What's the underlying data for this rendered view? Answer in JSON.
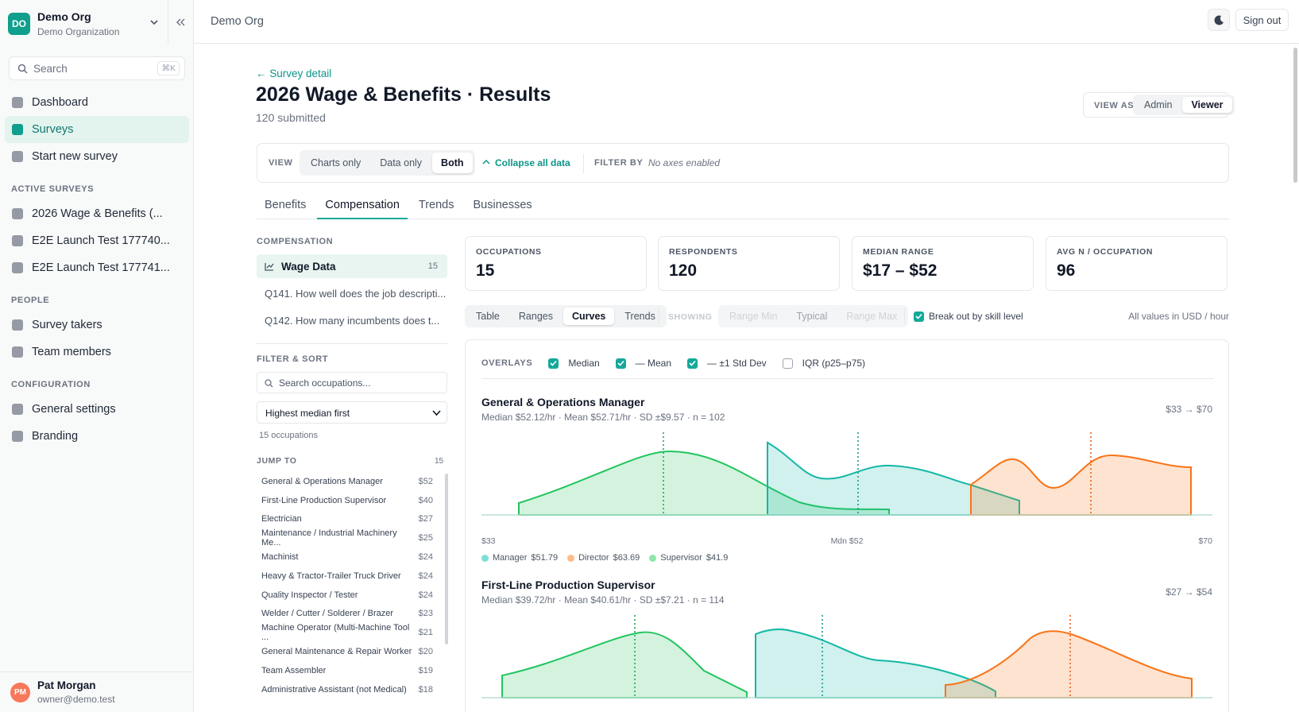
{
  "sidebar": {
    "org": {
      "initials": "DO",
      "name": "Demo Org",
      "subtitle": "Demo Organization"
    },
    "search": {
      "placeholder": "Search",
      "shortcut": "⌘K"
    },
    "nav": [
      {
        "label": "Dashboard",
        "active": false
      },
      {
        "label": "Surveys",
        "active": true
      },
      {
        "label": "Start new survey",
        "active": false
      }
    ],
    "sections": [
      {
        "title": "ACTIVE SURVEYS",
        "items": [
          "2026 Wage & Benefits (...",
          "E2E Launch Test 177740...",
          "E2E Launch Test 177741..."
        ]
      },
      {
        "title": "PEOPLE",
        "items": [
          "Survey takers",
          "Team members"
        ]
      },
      {
        "title": "CONFIGURATION",
        "items": [
          "General settings",
          "Branding"
        ]
      }
    ],
    "user": {
      "initials": "PM",
      "name": "Pat Morgan",
      "email": "owner@demo.test"
    }
  },
  "topbar": {
    "breadcrumb": "Demo Org",
    "sign_out": "Sign out"
  },
  "header": {
    "back": "← Survey detail",
    "title": "2026 Wage & Benefits · Results",
    "subtitle": "120 submitted"
  },
  "view_as": {
    "label": "VIEW AS",
    "options": [
      {
        "label": "Admin",
        "active": false
      },
      {
        "label": "Viewer",
        "active": true
      }
    ]
  },
  "view_bar": {
    "label": "VIEW",
    "options": [
      {
        "label": "Charts only",
        "active": false
      },
      {
        "label": "Data only",
        "active": false
      },
      {
        "label": "Both",
        "active": true
      }
    ],
    "collapse": "Collapse all data",
    "filter_label": "FILTER BY",
    "filter_value": "No axes enabled"
  },
  "tabs": [
    {
      "label": "Benefits",
      "active": false
    },
    {
      "label": "Compensation",
      "active": true
    },
    {
      "label": "Trends",
      "active": false
    },
    {
      "label": "Businesses",
      "active": false
    }
  ],
  "left": {
    "section": "COMPENSATION",
    "items": [
      {
        "label": "Wage Data",
        "count": "15",
        "active": true
      },
      {
        "label": "Q141. How well does the job descripti...",
        "active": false
      },
      {
        "label": "Q142. How many incumbents does t...",
        "active": false
      }
    ],
    "filter_title": "FILTER & SORT",
    "search_placeholder": "Search occupations...",
    "sort": "Highest median first",
    "result_count": "15 occupations",
    "jump_title": "JUMP TO",
    "jump_count": "15",
    "jump": [
      {
        "name": "General & Operations Manager",
        "value": "$52"
      },
      {
        "name": "First-Line Production Supervisor",
        "value": "$40"
      },
      {
        "name": "Electrician",
        "value": "$27"
      },
      {
        "name": "Maintenance / Industrial Machinery Me...",
        "value": "$25"
      },
      {
        "name": "Machinist",
        "value": "$24"
      },
      {
        "name": "Heavy & Tractor-Trailer Truck Driver",
        "value": "$24"
      },
      {
        "name": "Quality Inspector / Tester",
        "value": "$24"
      },
      {
        "name": "Welder / Cutter / Solderer / Brazer",
        "value": "$23"
      },
      {
        "name": "Machine Operator (Multi-Machine Tool ...",
        "value": "$21"
      },
      {
        "name": "General Maintenance & Repair Worker",
        "value": "$20"
      },
      {
        "name": "Team Assembler",
        "value": "$19"
      },
      {
        "name": "Administrative Assistant (not Medical)",
        "value": "$18"
      }
    ]
  },
  "stats": [
    {
      "label": "OCCUPATIONS",
      "value": "15"
    },
    {
      "label": "RESPONDENTS",
      "value": "120"
    },
    {
      "label": "MEDIAN RANGE",
      "value": "$17 – $52"
    },
    {
      "label": "AVG N / OCCUPATION",
      "value": "96"
    }
  ],
  "toolbar": {
    "modes": [
      {
        "label": "Table",
        "active": false
      },
      {
        "label": "Ranges",
        "active": false
      },
      {
        "label": "Curves",
        "active": true
      },
      {
        "label": "Trends",
        "active": false
      }
    ],
    "showing": "SHOWING",
    "show_options": [
      {
        "label": "Range Min",
        "active": false
      },
      {
        "label": "Typical",
        "active": true
      },
      {
        "label": "Range Max",
        "active": false
      }
    ],
    "breakout": {
      "label": "Break out by skill level",
      "checked": true
    },
    "units": "All values in USD / hour"
  },
  "overlays": {
    "label": "OVERLAYS",
    "items": [
      {
        "label": "Median",
        "checked": true
      },
      {
        "label": "— Mean",
        "checked": true
      },
      {
        "label": "— ±1 Std Dev",
        "checked": true
      },
      {
        "label": "IQR (p25–p75)",
        "checked": false
      }
    ]
  },
  "curves": [
    {
      "title": "General & Operations Manager",
      "stats": "Median $52.12/hr · Mean $52.71/hr · SD ±$9.57 · n = 102",
      "range": "$33 → $70",
      "axis": [
        "$33",
        "Mdn $52",
        "$70"
      ],
      "legend": [
        {
          "name": "Manager",
          "value": "$51.79",
          "color": "#7fded3"
        },
        {
          "name": "Director",
          "value": "$63.69",
          "color": "#fdbb8a"
        },
        {
          "name": "Supervisor",
          "value": "$41.9",
          "color": "#8ee6a8"
        }
      ]
    },
    {
      "title": "First-Line Production Supervisor",
      "stats": "Median $39.72/hr · Mean $40.61/hr · SD ±$7.21 · n = 114",
      "range": "$27 → $54"
    }
  ]
}
